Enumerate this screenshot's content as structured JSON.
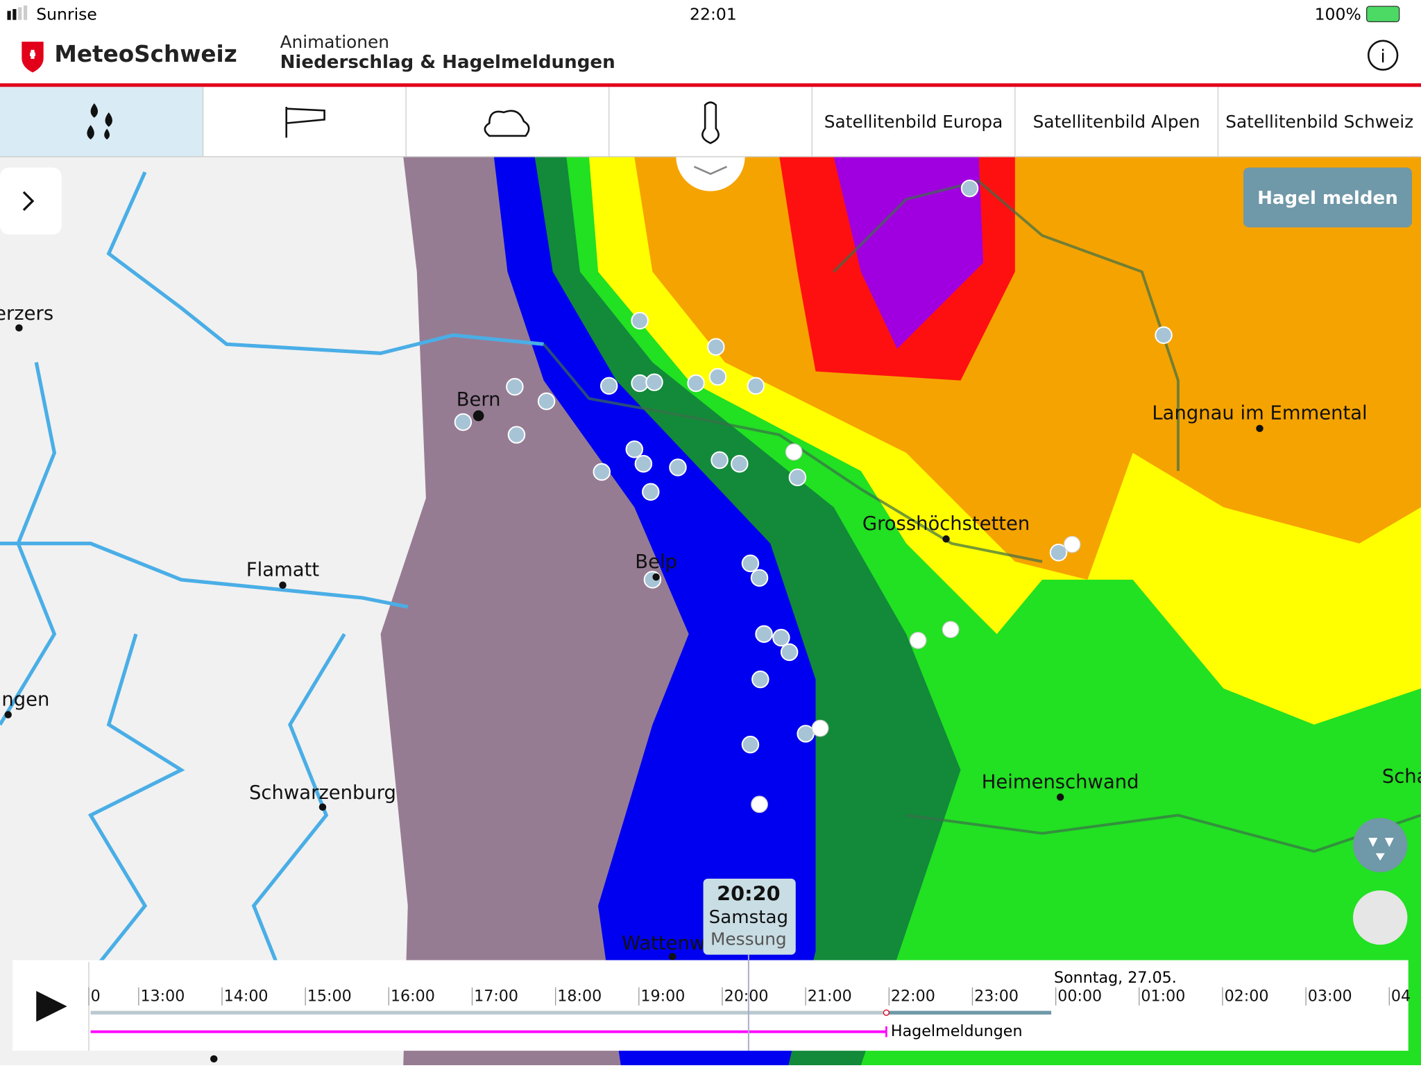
{
  "status_bar": {
    "carrier": "Sunrise",
    "time": "22:01",
    "battery": "100%"
  },
  "header": {
    "brand": "MeteoSchweiz",
    "subtitle": "Animationen",
    "title": "Niederschlag & Hagelmeldungen"
  },
  "tabs": [
    "Satellitenbild Europa",
    "Satellitenbild Alpen",
    "Satellitenbild Schweiz"
  ],
  "report_button": "Hagel melden",
  "places": [
    "erzers",
    "Bern",
    "Flamatt",
    "ingen",
    "Schwarzenburg",
    "Belp",
    "Wattenw",
    "Grosshöchstetten",
    "Langnau im Emmental",
    "Heimenschwand",
    "Scha"
  ],
  "time_badge": {
    "time": "20:20",
    "day": "Samstag",
    "kind": "Messung"
  },
  "timeline": {
    "date": "Sonntag, 27.05.",
    "hours": [
      "0",
      "13:00",
      "14:00",
      "15:00",
      "16:00",
      "17:00",
      "18:00",
      "19:00",
      "20:00",
      "21:00",
      "22:00",
      "23:00",
      "00:00",
      "01:00",
      "02:00",
      "03:00",
      "04"
    ],
    "layer": "Hagelmeldungen"
  }
}
